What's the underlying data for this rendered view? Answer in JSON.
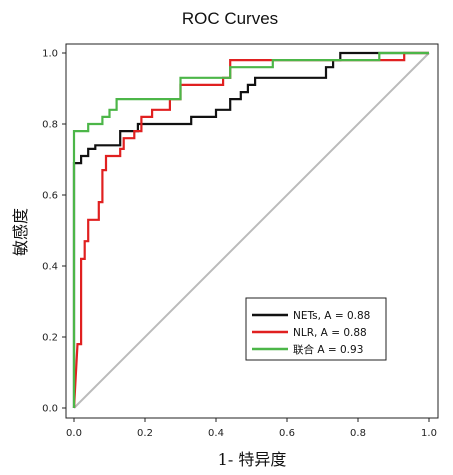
{
  "chart_data": {
    "type": "line",
    "title": "ROC Curves",
    "xlabel": "1- 特异度",
    "ylabel": "敏感度",
    "xlim": [
      0,
      1
    ],
    "ylim": [
      0,
      1
    ],
    "x_ticks": [
      "0.0",
      "0.2",
      "0.4",
      "0.6",
      "0.8",
      "1.0"
    ],
    "y_ticks": [
      "0.0",
      "0.2",
      "0.4",
      "0.6",
      "0.8",
      "1.0"
    ],
    "grid": false,
    "legend_position": "bottom-right",
    "reference_line": {
      "x": [
        0,
        1
      ],
      "y": [
        0,
        1
      ],
      "color": "#bbbbbb"
    },
    "series": [
      {
        "name": "NETs, A = 0.88",
        "color": "#111111",
        "points": [
          [
            0,
            0
          ],
          [
            0,
            0.69
          ],
          [
            0.02,
            0.69
          ],
          [
            0.02,
            0.71
          ],
          [
            0.04,
            0.71
          ],
          [
            0.04,
            0.73
          ],
          [
            0.06,
            0.73
          ],
          [
            0.06,
            0.74
          ],
          [
            0.13,
            0.74
          ],
          [
            0.13,
            0.78
          ],
          [
            0.18,
            0.78
          ],
          [
            0.18,
            0.8
          ],
          [
            0.33,
            0.8
          ],
          [
            0.33,
            0.82
          ],
          [
            0.4,
            0.82
          ],
          [
            0.4,
            0.84
          ],
          [
            0.44,
            0.84
          ],
          [
            0.44,
            0.87
          ],
          [
            0.47,
            0.87
          ],
          [
            0.47,
            0.89
          ],
          [
            0.49,
            0.89
          ],
          [
            0.49,
            0.91
          ],
          [
            0.51,
            0.91
          ],
          [
            0.51,
            0.93
          ],
          [
            0.71,
            0.93
          ],
          [
            0.71,
            0.96
          ],
          [
            0.73,
            0.96
          ],
          [
            0.73,
            0.98
          ],
          [
            0.75,
            0.98
          ],
          [
            0.75,
            1.0
          ],
          [
            1.0,
            1.0
          ]
        ]
      },
      {
        "name": "NLR, A = 0.88",
        "color": "#e02020",
        "points": [
          [
            0,
            0
          ],
          [
            0.01,
            0.18
          ],
          [
            0.02,
            0.18
          ],
          [
            0.02,
            0.42
          ],
          [
            0.03,
            0.42
          ],
          [
            0.03,
            0.47
          ],
          [
            0.04,
            0.47
          ],
          [
            0.04,
            0.53
          ],
          [
            0.07,
            0.53
          ],
          [
            0.07,
            0.58
          ],
          [
            0.08,
            0.58
          ],
          [
            0.08,
            0.67
          ],
          [
            0.09,
            0.67
          ],
          [
            0.09,
            0.71
          ],
          [
            0.13,
            0.71
          ],
          [
            0.13,
            0.73
          ],
          [
            0.14,
            0.73
          ],
          [
            0.14,
            0.76
          ],
          [
            0.17,
            0.76
          ],
          [
            0.17,
            0.78
          ],
          [
            0.19,
            0.78
          ],
          [
            0.19,
            0.82
          ],
          [
            0.22,
            0.82
          ],
          [
            0.22,
            0.84
          ],
          [
            0.27,
            0.84
          ],
          [
            0.27,
            0.87
          ],
          [
            0.3,
            0.87
          ],
          [
            0.3,
            0.91
          ],
          [
            0.42,
            0.91
          ],
          [
            0.42,
            0.93
          ],
          [
            0.44,
            0.93
          ],
          [
            0.44,
            0.98
          ],
          [
            0.86,
            0.98
          ],
          [
            0.86,
            0.98
          ],
          [
            0.93,
            0.98
          ],
          [
            0.93,
            1.0
          ],
          [
            1.0,
            1.0
          ]
        ]
      },
      {
        "name": "联合 A = 0.93",
        "color": "#4cb648",
        "points": [
          [
            0,
            0
          ],
          [
            0,
            0.78
          ],
          [
            0.04,
            0.78
          ],
          [
            0.04,
            0.8
          ],
          [
            0.08,
            0.8
          ],
          [
            0.08,
            0.82
          ],
          [
            0.1,
            0.82
          ],
          [
            0.1,
            0.84
          ],
          [
            0.12,
            0.84
          ],
          [
            0.12,
            0.87
          ],
          [
            0.3,
            0.87
          ],
          [
            0.3,
            0.93
          ],
          [
            0.44,
            0.93
          ],
          [
            0.44,
            0.96
          ],
          [
            0.56,
            0.96
          ],
          [
            0.56,
            0.98
          ],
          [
            0.86,
            0.98
          ],
          [
            0.86,
            1.0
          ],
          [
            1.0,
            1.0
          ]
        ]
      }
    ]
  }
}
